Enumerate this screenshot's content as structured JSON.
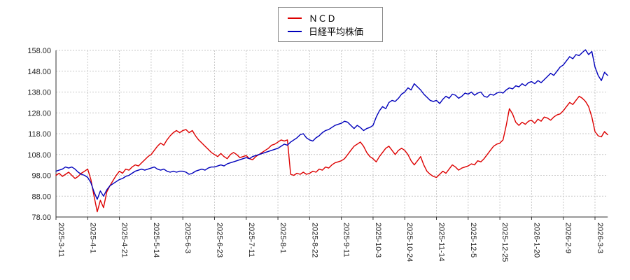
{
  "legend": {
    "items": [
      {
        "label": "ＮＣＤ",
        "color": "#dd0000"
      },
      {
        "label": "日経平均株価",
        "color": "#0000bb"
      }
    ]
  },
  "chart_data": {
    "type": "line",
    "title": "",
    "xlabel": "",
    "ylabel": "",
    "ylim": [
      78,
      158
    ],
    "grid": true,
    "legend_position": "top-center",
    "y_ticks": [
      78,
      88,
      98,
      108,
      118,
      128,
      138,
      148,
      158
    ],
    "y_tick_labels": [
      "78.00",
      "88.00",
      "98.00",
      "108.00",
      "118.00",
      "128.00",
      "138.00",
      "148.00",
      "158.00"
    ],
    "x_tick_labels": [
      "2025-3-11",
      "2025-4-1",
      "2025-4-21",
      "2025-5-14",
      "2025-6-3",
      "2025-6-23",
      "2025-7-11",
      "2025-8-1",
      "2025-8-22",
      "2025-9-11",
      "2025-10-3",
      "2025-10-24",
      "2025-11-14",
      "2025-12-5",
      "2025-12-25",
      "2026-1-20",
      "2026-2-9",
      "2026-3-3"
    ],
    "points_per_tick": 10,
    "series": [
      {
        "name": "ＮＣＤ",
        "color": "#dd0000",
        "values": [
          98,
          99,
          97.5,
          98.5,
          99.5,
          98,
          96.5,
          97.5,
          99,
          100,
          101,
          96,
          88,
          80.5,
          86,
          82.5,
          90,
          93,
          95.5,
          98,
          100,
          99,
          101,
          100.5,
          102,
          103,
          102.5,
          104,
          105.5,
          107,
          108,
          110,
          112,
          113.5,
          112.5,
          115,
          117,
          118.5,
          119.5,
          118.5,
          119.5,
          120,
          118.5,
          119.5,
          117,
          115,
          113.5,
          112,
          110.5,
          109,
          108,
          107,
          108.5,
          107,
          106,
          108,
          109,
          108,
          106.5,
          107,
          107.5,
          106,
          105.5,
          107,
          108,
          109,
          110,
          111,
          112.5,
          113,
          114,
          115,
          114.5,
          115,
          98.5,
          98,
          99,
          98.5,
          99.5,
          98.5,
          99,
          100,
          99.5,
          101,
          100.5,
          102,
          101.5,
          103,
          104,
          104.5,
          105,
          106,
          108,
          110,
          112,
          113,
          114,
          112,
          109,
          107,
          106,
          104.5,
          107,
          109,
          111,
          112,
          110,
          108,
          110,
          111,
          110,
          108,
          105,
          103,
          105,
          107,
          103,
          100,
          98.5,
          97.5,
          97,
          98.5,
          100,
          99,
          101,
          103,
          102,
          100.5,
          101.5,
          102,
          102.5,
          103.5,
          103,
          105,
          104.5,
          106,
          108,
          110,
          112,
          113,
          113.5,
          115,
          122,
          130,
          127.5,
          123.5,
          122,
          123.5,
          122.5,
          124,
          124.5,
          123,
          125,
          124,
          126,
          125.5,
          124.5,
          126,
          127,
          127.5,
          129,
          131,
          133,
          132,
          134,
          136,
          135,
          133.5,
          131,
          126,
          119,
          117,
          116.5,
          119,
          117.5
        ]
      },
      {
        "name": "日経平均株価",
        "color": "#0000bb",
        "values": [
          100,
          100.5,
          101,
          102,
          101.5,
          102,
          101,
          99.5,
          98.5,
          98,
          97,
          94.5,
          90,
          86.5,
          90.5,
          88,
          91,
          93,
          94,
          95,
          96,
          96.5,
          97.5,
          98,
          99,
          100,
          100.5,
          101,
          100.5,
          101,
          101.5,
          102,
          101,
          100.5,
          101,
          100,
          99.5,
          100,
          99.5,
          100,
          100,
          99.5,
          98.5,
          99,
          100,
          100.5,
          101,
          100.5,
          101.5,
          102,
          102,
          102.5,
          103,
          102.5,
          103.5,
          104,
          104.5,
          105,
          105.5,
          106,
          106.5,
          106,
          107,
          107.5,
          108,
          108.5,
          109,
          109.5,
          110,
          110.5,
          111,
          112,
          113,
          112.5,
          114,
          115,
          116,
          117.5,
          118,
          116,
          115,
          114.5,
          116,
          117,
          118.5,
          119.5,
          120,
          121,
          122,
          122.5,
          123,
          124,
          123.5,
          122,
          120.5,
          122,
          121,
          119.5,
          120.5,
          121,
          122,
          126,
          129,
          131,
          130,
          133,
          134,
          133.5,
          135,
          137,
          138,
          140,
          139,
          142,
          140.5,
          139,
          137,
          135.5,
          134,
          133.5,
          134,
          132.5,
          134.5,
          136,
          135,
          137,
          136.5,
          135,
          136,
          137.5,
          137,
          138,
          136.5,
          137.5,
          138,
          136,
          135.5,
          137,
          136.5,
          137.5,
          138,
          137.5,
          139,
          140,
          139.5,
          141,
          140.5,
          142,
          141,
          142.5,
          143,
          142,
          143.5,
          142.5,
          144,
          145.5,
          147,
          146,
          148,
          150,
          151,
          153,
          155,
          154,
          156,
          155.5,
          157,
          158.3,
          156,
          157.5,
          150,
          146,
          143.5,
          147.5,
          146
        ]
      }
    ]
  },
  "colors": {
    "background": "#ffffff",
    "grid": "#c9c9c9",
    "axis": "#333333",
    "tick_text": "#222222"
  }
}
